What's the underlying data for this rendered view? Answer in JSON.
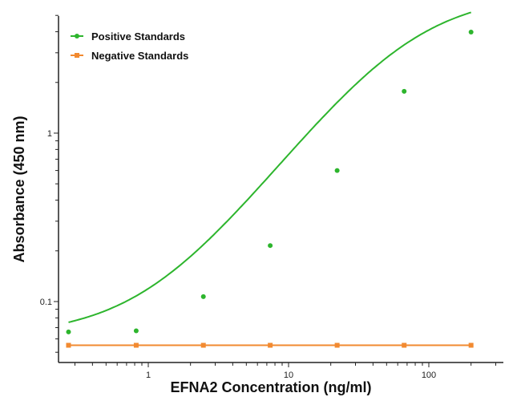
{
  "chart_data": {
    "type": "line",
    "title": "",
    "xlabel": "EFNA2 Concentration (ng/ml)",
    "ylabel": "Absorbance (450 nm)",
    "xscale": "log",
    "yscale": "log",
    "xlim": [
      0.2,
      300
    ],
    "ylim": [
      0.043,
      5
    ],
    "x_ticks": [
      1,
      10,
      100
    ],
    "x_tick_labels": [
      "1",
      "10",
      "100"
    ],
    "y_ticks": [
      0.1,
      1
    ],
    "y_tick_labels": [
      "0.1",
      "1"
    ],
    "grid": false,
    "legend_position": "upper left",
    "x": [
      0.27,
      0.82,
      2.47,
      7.4,
      22.2,
      66.7,
      200
    ],
    "series": [
      {
        "name": "Positive Standards",
        "color": "#2db52d",
        "marker": "circle",
        "fit": "4PL curve",
        "values": [
          0.066,
          0.067,
          0.107,
          0.215,
          0.6,
          1.77,
          3.98
        ]
      },
      {
        "name": "Negative Standards",
        "color": "#f28a30",
        "marker": "square",
        "fit": "line",
        "values": [
          0.055,
          0.055,
          0.055,
          0.055,
          0.055,
          0.055,
          0.055
        ]
      }
    ]
  }
}
